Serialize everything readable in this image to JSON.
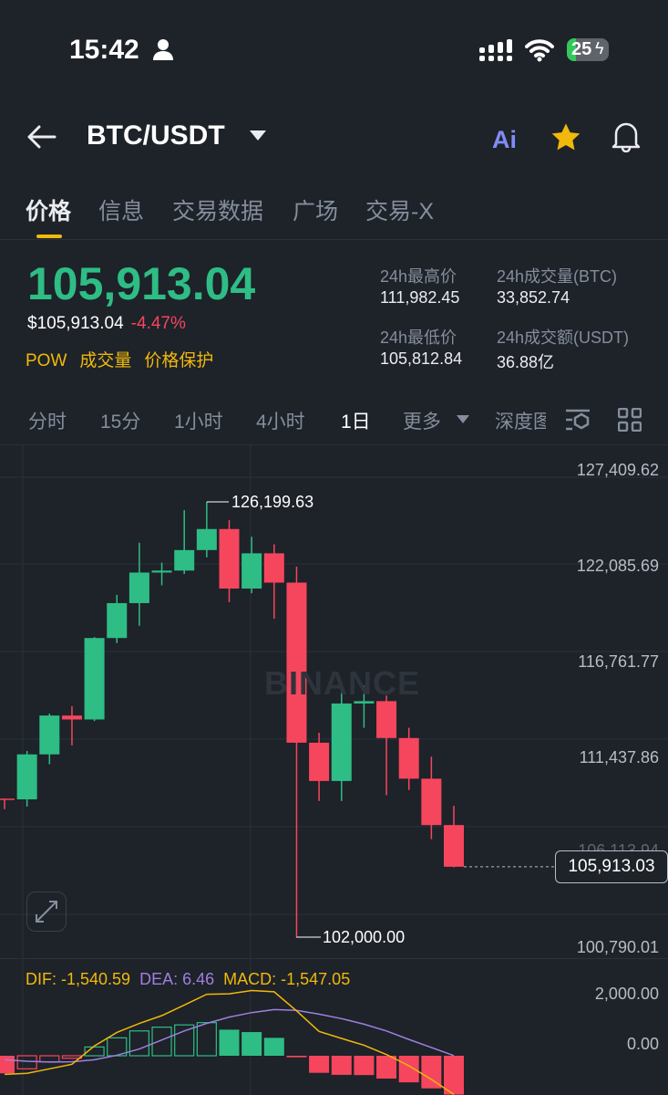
{
  "status_bar": {
    "time": "15:42",
    "battery": "25"
  },
  "header": {
    "pair": "BTC/USDT",
    "ai_label": "Ai"
  },
  "tabs": [
    {
      "label": "价格",
      "active": true
    },
    {
      "label": "信息"
    },
    {
      "label": "交易数据"
    },
    {
      "label": "广场"
    },
    {
      "label": "交易-X"
    }
  ],
  "price": {
    "last": "105,913.04",
    "usd": "$105,913.04",
    "change": "-4.47%",
    "links": [
      "POW",
      "成交量",
      "价格保护"
    ]
  },
  "stats": [
    {
      "label": "24h最高价",
      "value": "111,982.45"
    },
    {
      "label": "24h成交量(BTC)",
      "value": "33,852.74"
    },
    {
      "label": "24h最低价",
      "value": "105,812.84"
    },
    {
      "label": "24h成交额(USDT)",
      "value": "36.88亿"
    }
  ],
  "intervals": [
    {
      "label": "分时"
    },
    {
      "label": "15分"
    },
    {
      "label": "1小时"
    },
    {
      "label": "4小时"
    },
    {
      "label": "1日",
      "active": true
    },
    {
      "label": "更多"
    },
    {
      "label": "深度图"
    }
  ],
  "colors": {
    "up": "#2ebd85",
    "down": "#f6465d",
    "accent": "#f0b90b",
    "dif": "#f0b90b",
    "dea": "#9f7fe0"
  },
  "watermark": "BINANCE",
  "chart_data": {
    "type": "candlestick",
    "y_ticks": [
      "127,409.62",
      "122,085.69",
      "116,761.77",
      "111,437.86",
      "106,113.94",
      "100,790.01"
    ],
    "current_price": "105,913.03",
    "high_label": "126,199.63",
    "low_label": "102,000.00",
    "candles": [
      {
        "o": 109700,
        "h": 109700,
        "l": 109110,
        "c": 109660
      },
      {
        "o": 109660,
        "h": 112350,
        "l": 109260,
        "c": 112160
      },
      {
        "o": 112160,
        "h": 114430,
        "l": 111610,
        "c": 114320
      },
      {
        "o": 114320,
        "h": 114840,
        "l": 112660,
        "c": 114100
      },
      {
        "o": 114100,
        "h": 118680,
        "l": 114010,
        "c": 118630
      },
      {
        "o": 118630,
        "h": 121030,
        "l": 118350,
        "c": 120570
      },
      {
        "o": 120570,
        "h": 123930,
        "l": 119310,
        "c": 122270
      },
      {
        "o": 122270,
        "h": 122820,
        "l": 121560,
        "c": 122380
      },
      {
        "o": 122380,
        "h": 125740,
        "l": 122190,
        "c": 123520
      },
      {
        "o": 123520,
        "h": 126199.63,
        "l": 123120,
        "c": 124690
      },
      {
        "o": 124690,
        "h": 125180,
        "l": 120620,
        "c": 121380
      },
      {
        "o": 121380,
        "h": 124260,
        "l": 121120,
        "c": 123340
      },
      {
        "o": 123340,
        "h": 123840,
        "l": 119700,
        "c": 121710
      },
      {
        "o": 121710,
        "h": 122600,
        "l": 102000,
        "c": 112810
      },
      {
        "o": 112810,
        "h": 113360,
        "l": 109570,
        "c": 110680
      },
      {
        "o": 110680,
        "h": 115800,
        "l": 109570,
        "c": 114990
      },
      {
        "o": 114990,
        "h": 115980,
        "l": 113640,
        "c": 115120
      },
      {
        "o": 115120,
        "h": 115430,
        "l": 109890,
        "c": 113070
      },
      {
        "o": 113070,
        "h": 113640,
        "l": 110180,
        "c": 110810
      },
      {
        "o": 110810,
        "h": 112030,
        "l": 107450,
        "c": 108230
      },
      {
        "o": 108230,
        "h": 109300,
        "l": 105880,
        "c": 105913.04
      }
    ],
    "macd": {
      "labels": {
        "dif": "DIF: -1,540.59",
        "dea": "DEA: 6.46",
        "macd": "MACD: -1,547.05"
      },
      "y_ticks": [
        "2,000.00",
        "0.00"
      ],
      "hist": [
        -700,
        -520,
        -240,
        -100,
        350,
        714,
        990,
        1140,
        1230,
        1320,
        1040,
        944,
        714,
        -60,
        -680,
        -760,
        -770,
        -910,
        -1060,
        -1300,
        -1547.05
      ],
      "hollow": [
        false,
        true,
        true,
        true,
        true,
        true,
        true,
        true,
        true,
        true,
        false,
        false,
        false,
        false,
        false,
        false,
        false,
        false,
        false,
        false,
        false
      ],
      "dif": [
        -740,
        -700,
        -520,
        -340,
        390,
        930,
        1290,
        1600,
        2020,
        2450,
        2470,
        2600,
        2550,
        1790,
        970,
        690,
        420,
        50,
        -400,
        -940,
        -1540.59
      ],
      "dea": [
        -160,
        -220,
        -250,
        -240,
        -160,
        20,
        270,
        630,
        990,
        1290,
        1540,
        1720,
        1840,
        1810,
        1660,
        1480,
        1260,
        990,
        650,
        330,
        6.46
      ]
    }
  }
}
